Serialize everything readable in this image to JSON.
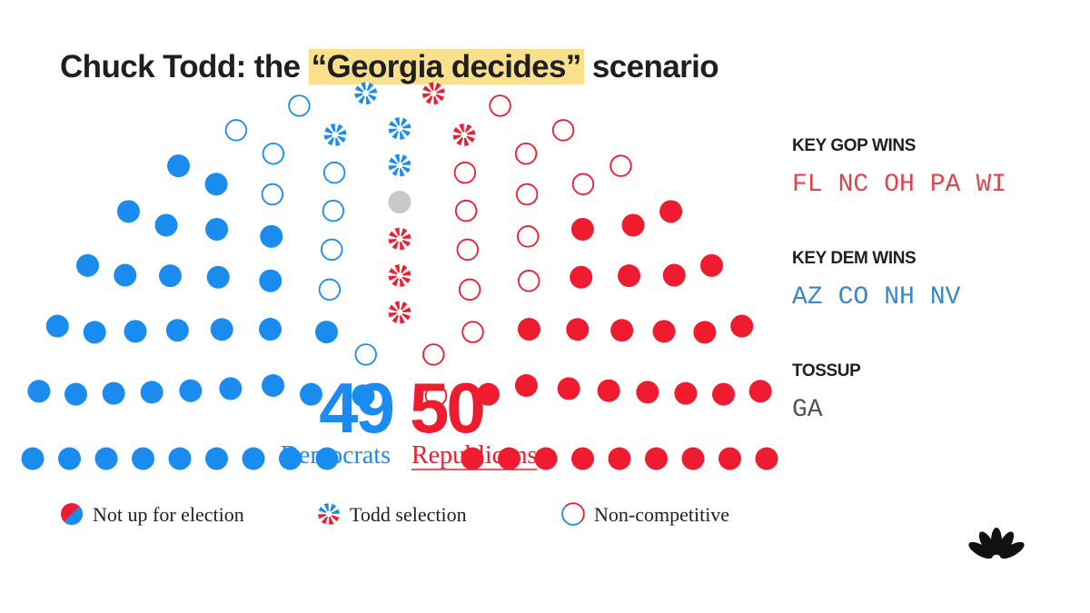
{
  "title": {
    "before": "Chuck Todd: the ",
    "highlight": "“Georgia decides”",
    "after": " scenario"
  },
  "colors": {
    "dem": "#1a8cf0",
    "gop": "#ee1c2e",
    "neutral": "#c8c8c8",
    "text": "#1f1f1f",
    "highlight": "#fbe08c",
    "dem_label": "#3a86c8",
    "gop_label": "#e0454f",
    "tossup_label": "#555555"
  },
  "chart_data": {
    "type": "parliament",
    "total_seats": 100,
    "totals": [
      {
        "party": "Democrats",
        "count": 49
      },
      {
        "party": "Republicans",
        "count": 50
      }
    ],
    "seat_groups": [
      {
        "party": "Democrats",
        "status": "Not up for election",
        "count": 36
      },
      {
        "party": "Democrats",
        "status": "Non-competitive",
        "count": 9
      },
      {
        "party": "Democrats",
        "status": "Todd selection",
        "count": 4
      },
      {
        "party": "Tossup",
        "status": "Tossup",
        "count": 1
      },
      {
        "party": "Republicans",
        "status": "Todd selection",
        "count": 5
      },
      {
        "party": "Republicans",
        "status": "Non-competitive",
        "count": 15
      },
      {
        "party": "Republicans",
        "status": "Not up for election",
        "count": 30
      }
    ],
    "legend": [
      {
        "key": "not_up",
        "label": "Not up for election"
      },
      {
        "key": "todd",
        "label": "Todd selection"
      },
      {
        "key": "noncomp",
        "label": "Non-competitive"
      }
    ]
  },
  "side_panel": {
    "gop": {
      "heading": "KEY GOP WINS",
      "states": [
        "FL",
        "NC",
        "OH",
        "PA",
        "WI"
      ]
    },
    "dem": {
      "heading": "KEY DEM WINS",
      "states": [
        "AZ",
        "CO",
        "NH",
        "NV"
      ]
    },
    "tossup": {
      "heading": "TOSSUP",
      "states": [
        "GA"
      ]
    }
  }
}
